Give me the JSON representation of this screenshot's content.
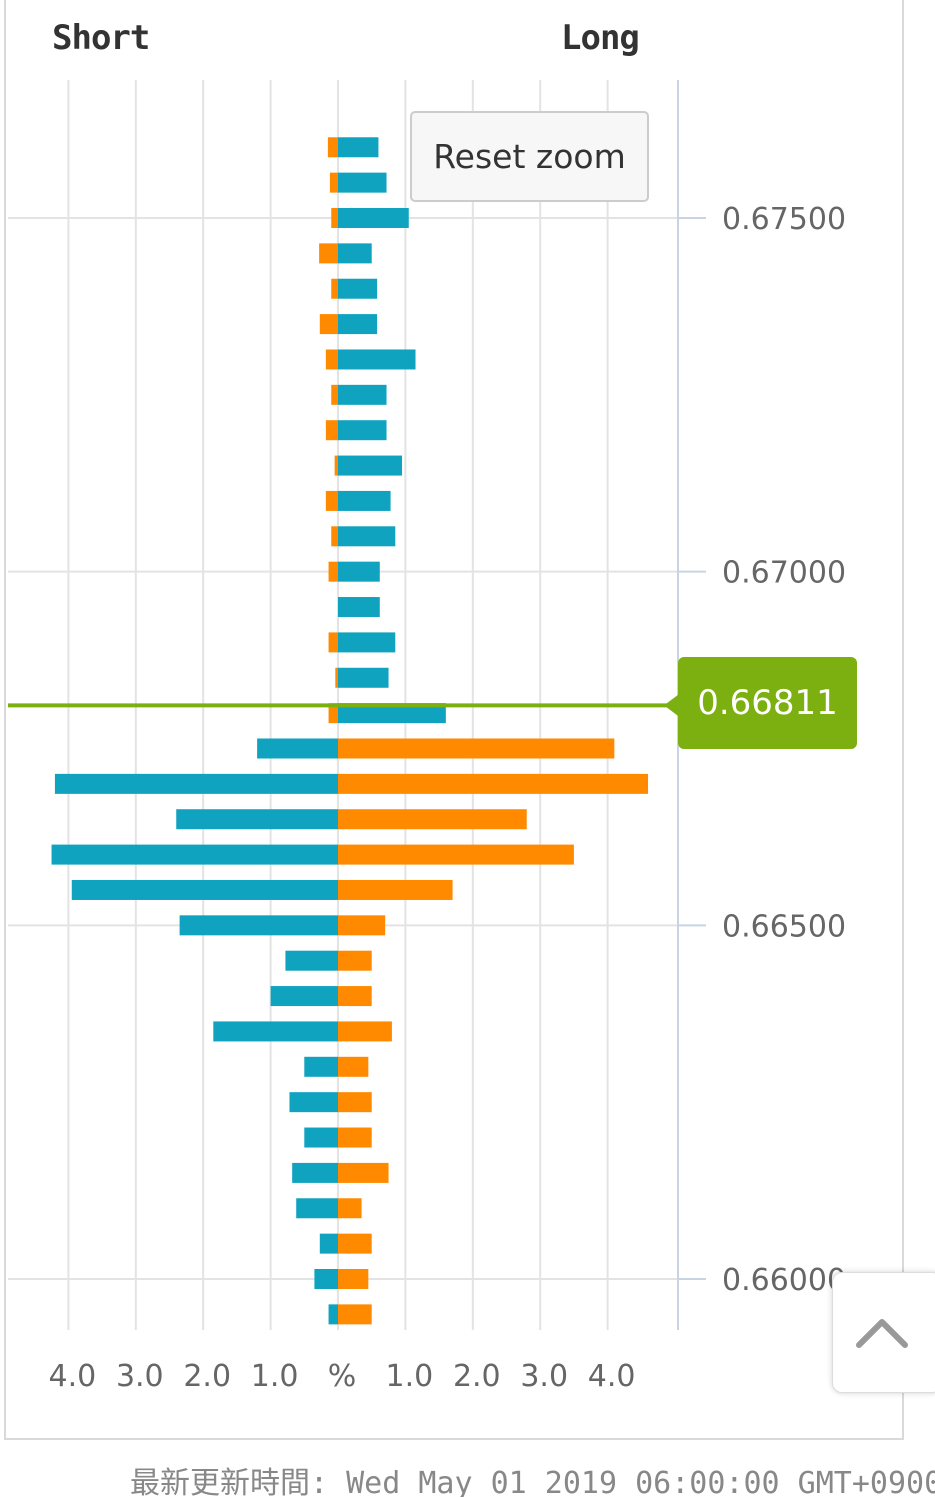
{
  "header": {
    "short_label": "Short",
    "long_label": "Long"
  },
  "reset_zoom_label": "Reset zoom",
  "current_price_label": "0.66811",
  "footer_text": "最新更新時間: Wed May 01 2019 06:00:00 GMT+0900",
  "colors": {
    "teal": "#0fa3bf",
    "orange": "#ff8a00",
    "price_line": "#7cb010",
    "grid": "#e3e3e3",
    "axis": "#c8d4e4"
  },
  "chart_data": {
    "type": "bar",
    "orientation": "horizontal-butterfly",
    "title": "",
    "xlabel": "%",
    "ylabel": "",
    "x_tick_labels": [
      "4.0",
      "3.0",
      "2.0",
      "1.0",
      "%",
      "1.0",
      "2.0",
      "3.0",
      "4.0"
    ],
    "x_tick_values": [
      -4,
      -3,
      -2,
      -1,
      0,
      1,
      2,
      3,
      4
    ],
    "y_tick_labels": [
      "0.67500",
      "0.67000",
      "0.66500",
      "0.66000"
    ],
    "y_tick_values": [
      0.675,
      0.67,
      0.665,
      0.66
    ],
    "ylim": [
      0.6597,
      0.6771
    ],
    "current_price": 0.66811,
    "price_levels": [
      0.676,
      0.6755,
      0.675,
      0.6745,
      0.674,
      0.6735,
      0.673,
      0.6725,
      0.672,
      0.6715,
      0.671,
      0.6705,
      0.67,
      0.6695,
      0.669,
      0.6685,
      0.668,
      0.6675,
      0.667,
      0.6665,
      0.666,
      0.6655,
      0.665,
      0.6645,
      0.664,
      0.6635,
      0.663,
      0.6625,
      0.662,
      0.6615,
      0.661,
      0.6605,
      0.66,
      0.6595
    ],
    "series": [
      {
        "name": "",
        "color": "#ff8a00",
        "values": [
          -0.15,
          -0.12,
          -0.1,
          -0.28,
          -0.1,
          -0.27,
          -0.18,
          -0.1,
          -0.18,
          -0.05,
          -0.18,
          -0.1,
          -0.14,
          0,
          -0.14,
          -0.04,
          -0.14,
          4.1,
          4.6,
          2.8,
          3.5,
          1.7,
          0.7,
          0.5,
          0.5,
          0.8,
          0.45,
          0.5,
          0.5,
          0.75,
          0.35,
          0.5,
          0.45,
          0.5
        ]
      },
      {
        "name": "",
        "color": "#0fa3bf",
        "values": [
          0.6,
          0.72,
          1.05,
          0.5,
          0.58,
          0.58,
          1.15,
          0.72,
          0.72,
          0.95,
          0.78,
          0.85,
          0.62,
          0.62,
          0.85,
          0.75,
          1.6,
          -1.2,
          -4.2,
          -2.4,
          -4.25,
          -3.95,
          -2.35,
          -0.78,
          -1.0,
          -1.85,
          -0.5,
          -0.72,
          -0.5,
          -0.68,
          -0.62,
          -0.27,
          -0.35,
          -0.14
        ]
      }
    ]
  }
}
